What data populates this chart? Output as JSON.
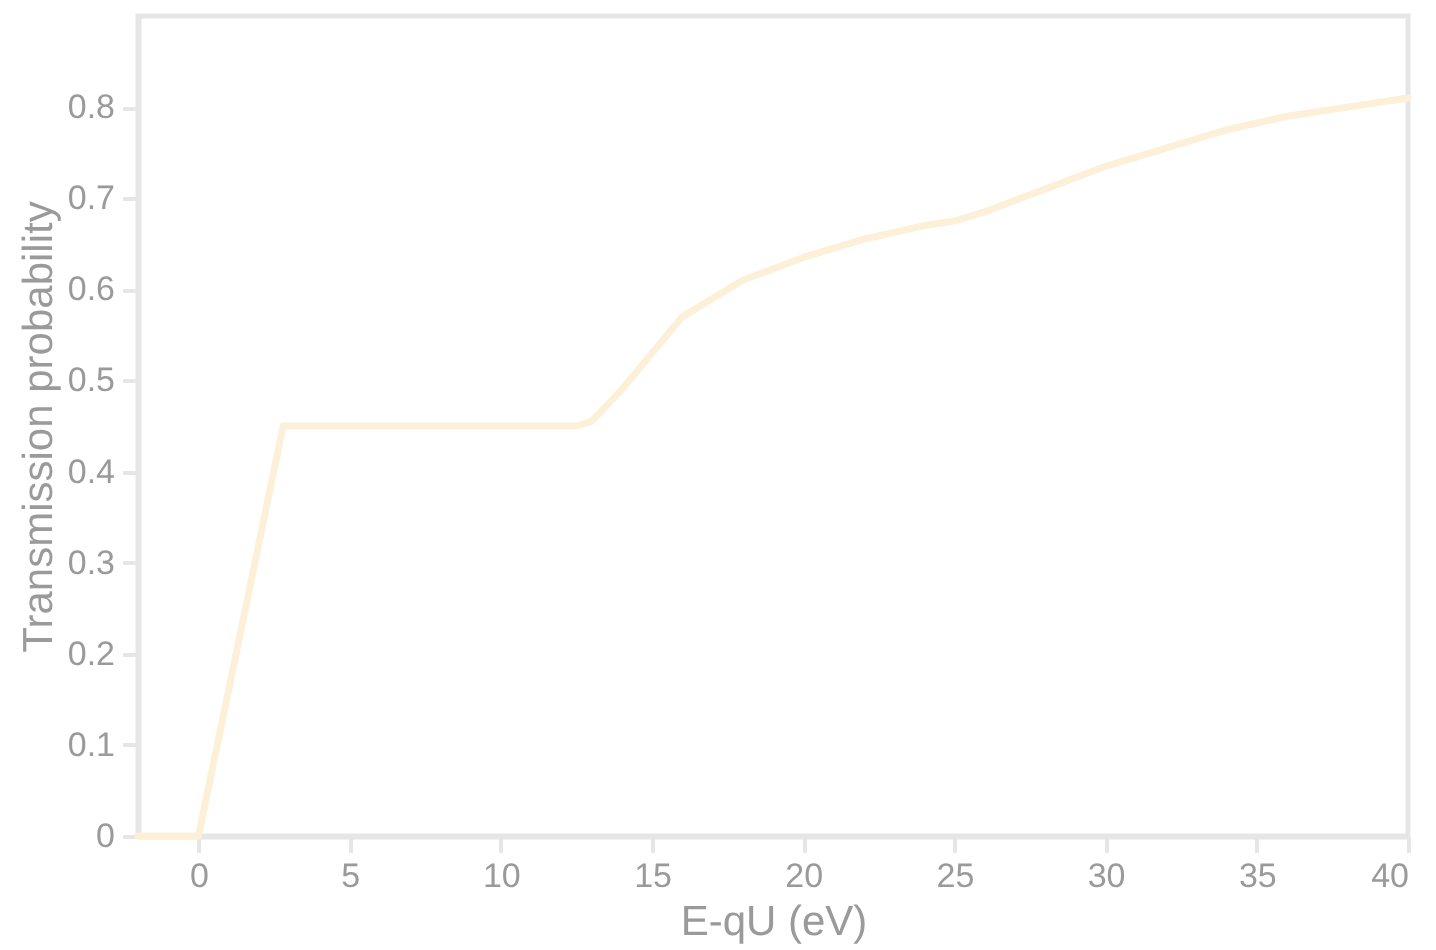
{
  "chart_data": {
    "type": "line",
    "xlabel": "E-qU (eV)",
    "ylabel": "Transmission probability",
    "x": [
      -2,
      0,
      2.8,
      12.5,
      13,
      14,
      15,
      16,
      18,
      20,
      22,
      24,
      25,
      26,
      28,
      30,
      32,
      34,
      36,
      38,
      40
    ],
    "series": [
      {
        "color": "#fdf0d8",
        "values": [
          0,
          0,
          0.45,
          0.45,
          0.455,
          0.49,
          0.53,
          0.57,
          0.61,
          0.635,
          0.655,
          0.67,
          0.675,
          0.685,
          0.71,
          0.735,
          0.755,
          0.775,
          0.79,
          0.8,
          0.81
        ]
      }
    ],
    "xlim": [
      -2,
      40
    ],
    "xticks": [
      0,
      5,
      10,
      15,
      20,
      25,
      30,
      35,
      40
    ],
    "ylim": [
      0,
      0.9
    ],
    "yticks": [
      {
        "value": 0,
        "label": "0"
      },
      0.1,
      0.2,
      0.3,
      0.4,
      0.5,
      0.6,
      0.7,
      0.8
    ],
    "grid": false,
    "marker": "none",
    "line_style": "solid"
  }
}
